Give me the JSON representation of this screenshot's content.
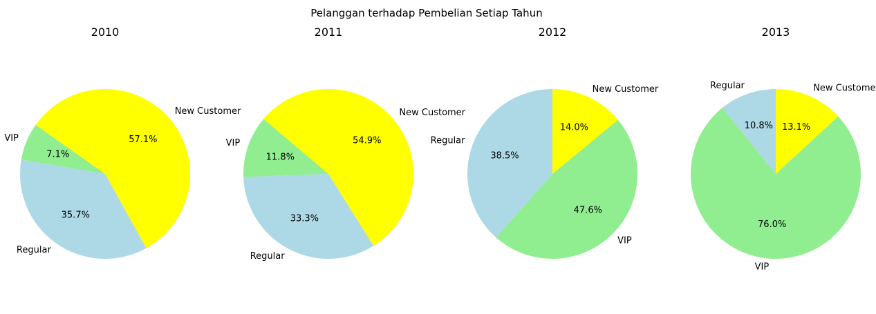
{
  "figure_title": "Pelanggan terhadap Pembelian Setiap Tahun",
  "colors": {
    "New Customer": "#ffff00",
    "VIP": "#90ee90",
    "Regular": "#add8e6"
  },
  "chart_data": [
    {
      "type": "pie",
      "title": "2010",
      "slices": [
        {
          "label": "New Customer",
          "pct": 57.1,
          "pct_label": "57.1%"
        },
        {
          "label": "VIP",
          "pct": 7.1,
          "pct_label": "7.1%"
        },
        {
          "label": "Regular",
          "pct": 35.7,
          "pct_label": "35.7%"
        }
      ]
    },
    {
      "type": "pie",
      "title": "2011",
      "slices": [
        {
          "label": "New Customer",
          "pct": 54.9,
          "pct_label": "54.9%"
        },
        {
          "label": "VIP",
          "pct": 11.8,
          "pct_label": "11.8%"
        },
        {
          "label": "Regular",
          "pct": 33.3,
          "pct_label": "33.3%"
        }
      ]
    },
    {
      "type": "pie",
      "title": "2012",
      "slices": [
        {
          "label": "Regular",
          "pct": 38.5,
          "pct_label": "38.5%"
        },
        {
          "label": "VIP",
          "pct": 47.6,
          "pct_label": "47.6%"
        },
        {
          "label": "New Customer",
          "pct": 14.0,
          "pct_label": "14.0%"
        }
      ]
    },
    {
      "type": "pie",
      "title": "2013",
      "slices": [
        {
          "label": "Regular",
          "pct": 10.8,
          "pct_label": "10.8%"
        },
        {
          "label": "VIP",
          "pct": 76.0,
          "pct_label": "76.0%"
        },
        {
          "label": "New Customer",
          "pct": 13.1,
          "pct_label": "13.1%"
        }
      ]
    }
  ]
}
